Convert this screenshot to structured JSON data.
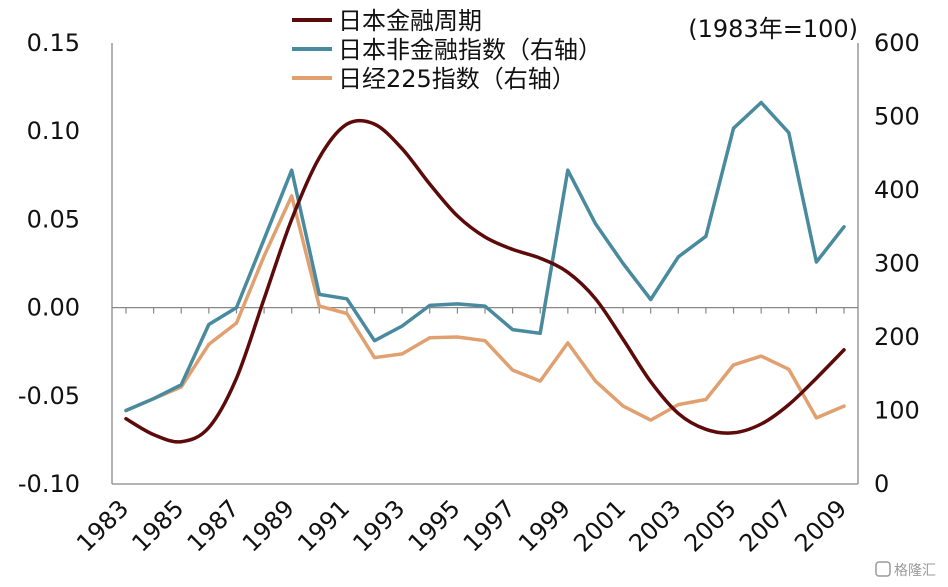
{
  "chart_data": {
    "type": "line",
    "note": "(1983年=100)",
    "x": [
      1983,
      1984,
      1985,
      1986,
      1987,
      1988,
      1989,
      1990,
      1991,
      1992,
      1993,
      1994,
      1995,
      1996,
      1997,
      1998,
      1999,
      2000,
      2001,
      2002,
      2003,
      2004,
      2005,
      2006,
      2007,
      2008,
      2009
    ],
    "x_tick_labels": [
      "1983",
      "1985",
      "1987",
      "1989",
      "1991",
      "1993",
      "1995",
      "1997",
      "1999",
      "2001",
      "2003",
      "2005",
      "2007",
      "2009"
    ],
    "y_left": {
      "ylim": [
        -0.1,
        0.15
      ],
      "ticks": [
        "0.15",
        "0.10",
        "0.05",
        "0.00",
        "-0.05",
        "-0.10"
      ]
    },
    "y_right": {
      "ylim": [
        0,
        600
      ],
      "ticks": [
        "600",
        "500",
        "400",
        "300",
        "200",
        "100",
        "0"
      ]
    },
    "series": [
      {
        "name": "日本金融周期",
        "axis": "left",
        "color": "#5c0a0a",
        "values": [
          -0.063,
          -0.072,
          -0.076,
          -0.068,
          -0.04,
          0.005,
          0.05,
          0.085,
          0.104,
          0.104,
          0.09,
          0.07,
          0.052,
          0.04,
          0.033,
          0.028,
          0.02,
          0.005,
          -0.018,
          -0.042,
          -0.06,
          -0.069,
          -0.071,
          -0.066,
          -0.055,
          -0.04,
          -0.024
        ]
      },
      {
        "name": "日本非金融指数（右轴）",
        "axis": "right",
        "color": "#4a8a9e",
        "values": [
          100,
          116,
          135,
          217,
          240,
          333,
          427,
          258,
          252,
          195,
          215,
          243,
          245,
          242,
          210,
          205,
          427,
          354,
          300,
          251,
          309,
          337,
          484,
          519,
          478,
          302,
          350
        ]
      },
      {
        "name": "日经225指数（右轴）",
        "axis": "right",
        "color": "#e0a070",
        "values": [
          100,
          116,
          132,
          190,
          219,
          310,
          392,
          242,
          232,
          172,
          177,
          199,
          200,
          195,
          155,
          140,
          192,
          140,
          106,
          87,
          108,
          115,
          162,
          174,
          156,
          90,
          106
        ]
      }
    ]
  },
  "watermark": "格隆汇"
}
